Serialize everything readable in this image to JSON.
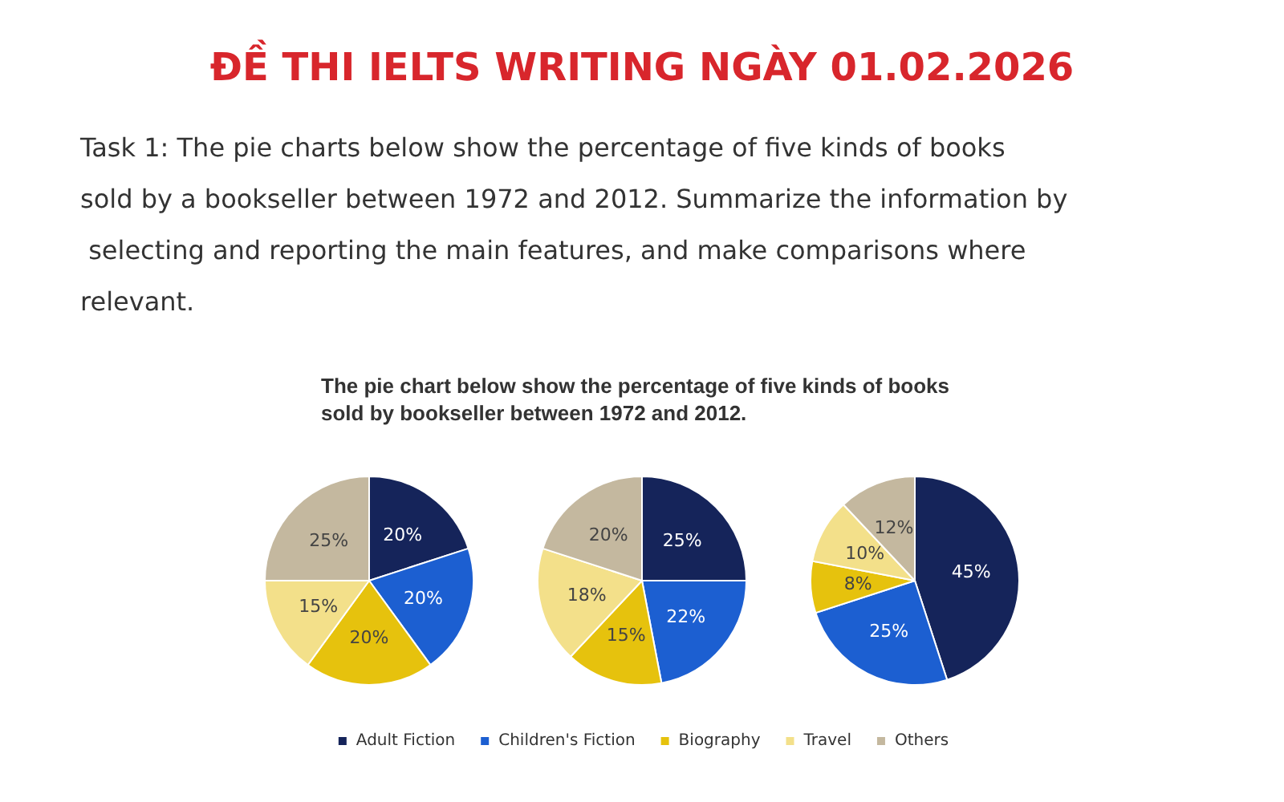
{
  "chart_data": [
    {
      "type": "pie",
      "title": "ĐỀ THI IELTS WRITING NGÀY 01.02.2026",
      "subtitle": "Task 1: The pie charts below show the percentage of five kinds of books sold by a bookseller between 1972 and 2012. Summarize the information by selecting and reporting the main features, and make comparisons where relevant.",
      "annotations": [
        "The pie chart below show the percentage of five kinds of books sold by bookseller between 1972 and 2012."
      ],
      "categories": [
        "Adult Fiction",
        "Children's Fiction",
        "Biography",
        "Travel",
        "Others"
      ],
      "values": [
        20,
        20,
        20,
        15,
        25
      ],
      "value_labels": [
        "20%",
        "20%",
        "20%",
        "15%",
        "25%"
      ],
      "colors": [
        "#15245a",
        "#1c5fd1",
        "#e6c20d",
        "#f3e08a",
        "#c4b89f"
      ],
      "legend": "bottom"
    },
    {
      "type": "pie",
      "categories": [
        null,
        null,
        null,
        null,
        null
      ],
      "values": [
        25,
        22,
        15,
        18,
        20
      ],
      "value_labels": [
        "25%",
        "22%",
        "15%",
        "18%",
        "20%"
      ],
      "colors": [
        "#15245a",
        "#1c5fd1",
        "#e6c20d",
        "#f3e08a",
        "#c4b89f"
      ]
    },
    {
      "type": "pie",
      "categories": [
        null,
        null,
        null,
        null,
        null
      ],
      "values": [
        45,
        25,
        8,
        10,
        12
      ],
      "value_labels": [
        "45%",
        "25%",
        "8%",
        "10%",
        "12%"
      ],
      "colors": [
        "#15245a",
        "#1c5fd1",
        "#e6c20d",
        "#f3e08a",
        "#c4b89f"
      ]
    }
  ]
}
